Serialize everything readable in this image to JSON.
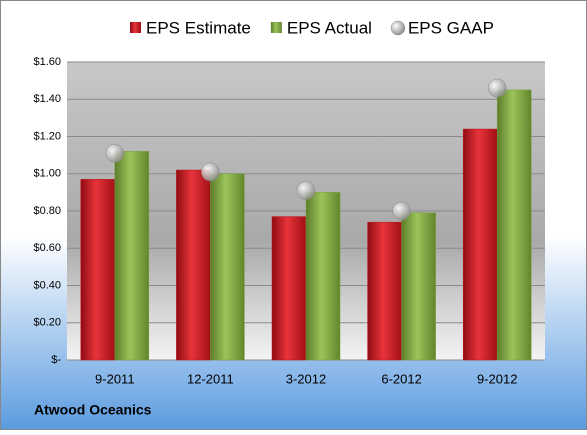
{
  "chart_data": {
    "type": "bar",
    "categories": [
      "9-2011",
      "12-2011",
      "3-2012",
      "6-2012",
      "9-2012"
    ],
    "series": [
      {
        "name": "EPS Estimate",
        "color": "#c0141c",
        "values": [
          0.97,
          1.02,
          0.77,
          0.74,
          1.24
        ]
      },
      {
        "name": "EPS Actual",
        "color": "#7aa03a",
        "values": [
          1.12,
          1.0,
          0.9,
          0.79,
          1.45
        ]
      },
      {
        "name": "EPS GAAP",
        "color": "#a6a6a6",
        "values": [
          1.11,
          1.01,
          0.91,
          0.8,
          1.46
        ]
      }
    ],
    "ylim": [
      0,
      1.6
    ],
    "yticks": [
      {
        "value": 0,
        "label": "$-"
      },
      {
        "value": 0.2,
        "label": "$0.20"
      },
      {
        "value": 0.4,
        "label": "$0.40"
      },
      {
        "value": 0.6,
        "label": "$0.60"
      },
      {
        "value": 0.8,
        "label": "$0.80"
      },
      {
        "value": 1.0,
        "label": "$1.00"
      },
      {
        "value": 1.2,
        "label": "$1.20"
      },
      {
        "value": 1.4,
        "label": "$1.40"
      },
      {
        "value": 1.6,
        "label": "$1.60"
      }
    ],
    "grid": true,
    "source": "Atwood Oceanics"
  }
}
